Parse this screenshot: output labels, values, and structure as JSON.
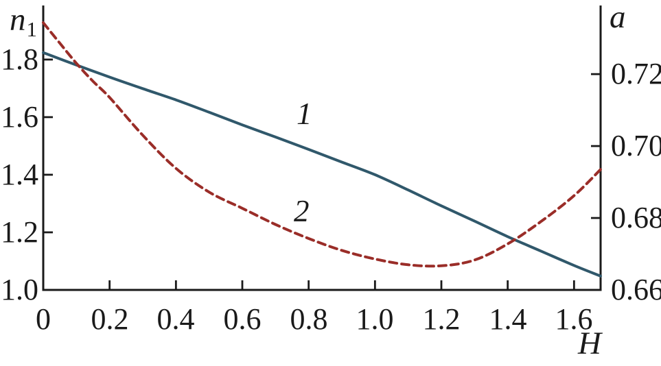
{
  "figure": {
    "background": "#ffffff",
    "axis_color": "#1a1a1a",
    "text_color": "#1a1a1a"
  },
  "labels": {
    "left_axis_title": "n",
    "left_axis_title_sub": "1",
    "right_axis_title": "a",
    "x_axis_title": "H",
    "curve1_label": "1",
    "curve2_label": "2"
  },
  "chart_data": {
    "type": "line",
    "title": "",
    "xlabel": "H",
    "ylabel_left": "n1",
    "ylabel_right": "a",
    "grid": false,
    "legend_position": "inline numeric curve labels",
    "xlim": [
      0,
      1.68
    ],
    "ylim_left": [
      1.0,
      1.983
    ],
    "ylim_right": [
      0.66,
      0.7387
    ],
    "x_ticks": [
      0,
      0.2,
      0.4,
      0.6,
      0.8,
      1.0,
      1.2,
      1.4,
      1.6
    ],
    "x_tick_labels": [
      "0",
      "0.2",
      "0.4",
      "0.6",
      "0.8",
      "1.0",
      "1.2",
      "1.4",
      "1.6"
    ],
    "left_ticks": [
      1.0,
      1.2,
      1.4,
      1.6,
      1.8
    ],
    "left_tick_labels": [
      "1.0",
      "1.2",
      "1.4",
      "1.6",
      "1.8"
    ],
    "right_ticks": [
      0.66,
      0.68,
      0.7,
      0.72
    ],
    "right_tick_labels": [
      "0.66",
      "0.68",
      "0.70",
      "0.72"
    ],
    "series": [
      {
        "name": "1",
        "axis": "left",
        "style": "solid",
        "color": "#30586B",
        "x": [
          0,
          0.1,
          0.2,
          0.3,
          0.4,
          0.5,
          0.6,
          0.7,
          0.8,
          0.9,
          1.0,
          1.1,
          1.2,
          1.3,
          1.4,
          1.5,
          1.6,
          1.68
        ],
        "y": [
          1.824,
          1.781,
          1.739,
          1.699,
          1.66,
          1.617,
          1.573,
          1.531,
          1.488,
          1.444,
          1.4,
          1.347,
          1.292,
          1.239,
          1.185,
          1.135,
          1.085,
          1.048
        ]
      },
      {
        "name": "2",
        "axis": "right",
        "style": "dashed",
        "color": "#9A2D28",
        "x": [
          0,
          0.05,
          0.1,
          0.15,
          0.2,
          0.3,
          0.4,
          0.5,
          0.6,
          0.7,
          0.8,
          0.9,
          1.0,
          1.1,
          1.2,
          1.3,
          1.4,
          1.5,
          1.6,
          1.68
        ],
        "y": [
          0.7343,
          0.7286,
          0.723,
          0.718,
          0.7135,
          0.703,
          0.6938,
          0.6872,
          0.6827,
          0.6782,
          0.6743,
          0.671,
          0.6686,
          0.667,
          0.6667,
          0.6683,
          0.6728,
          0.679,
          0.6862,
          0.6935
        ]
      }
    ]
  }
}
